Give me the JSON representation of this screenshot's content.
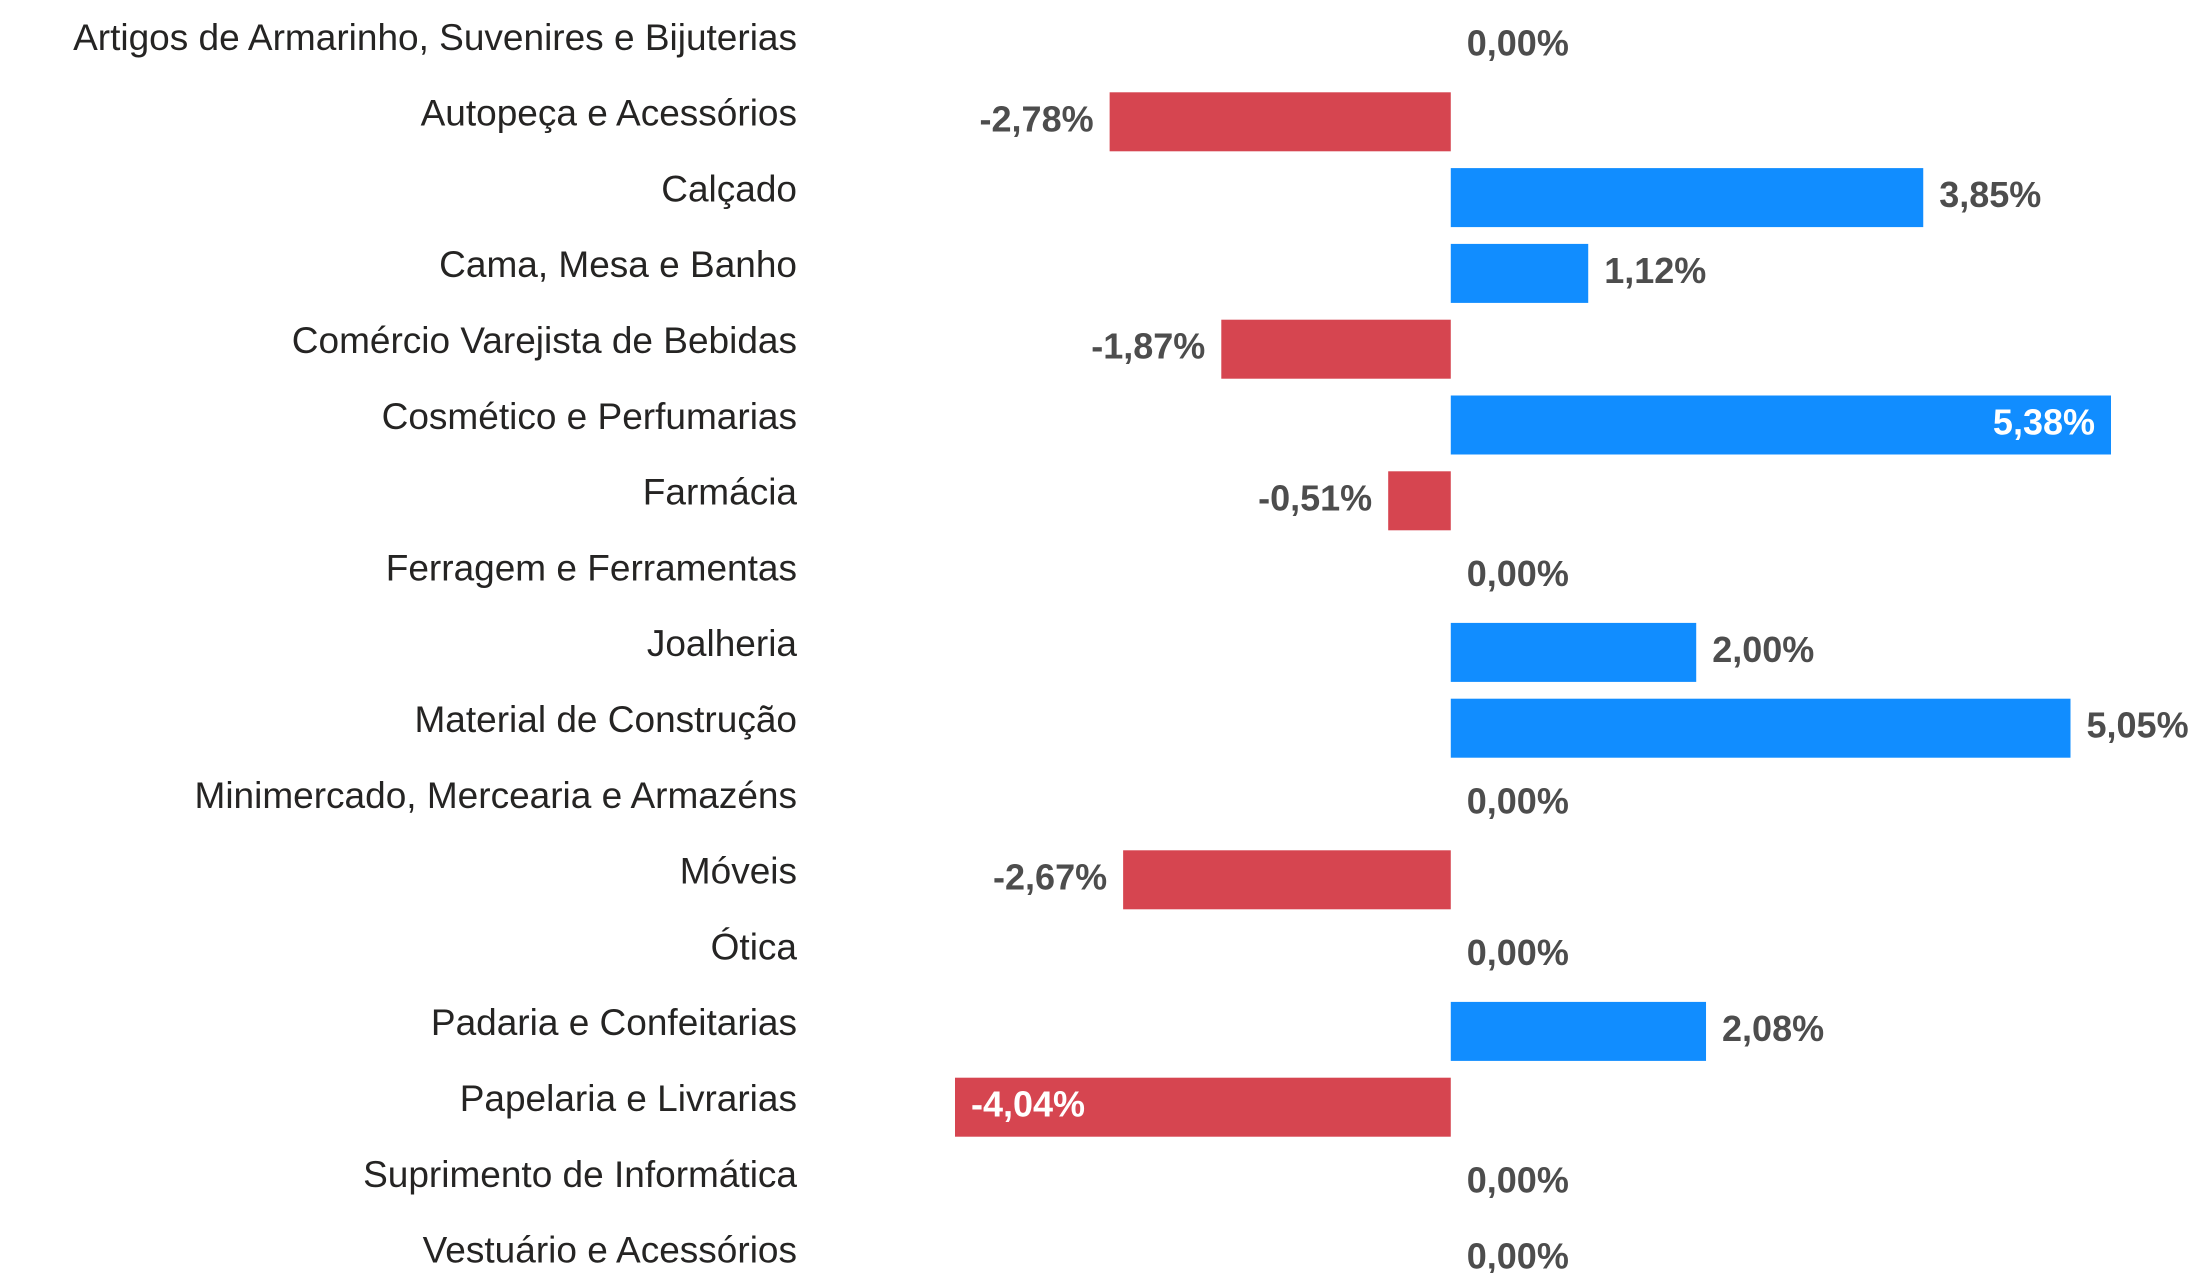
{
  "chart_data": {
    "type": "hbar",
    "categories": [
      "Artigos de Armarinho, Suvenires e Bijuterias",
      "Autopeça e Acessórios",
      "Calçado",
      "Cama, Mesa e Banho",
      "Comércio Varejista de Bebidas",
      "Cosmético e Perfumarias",
      "Farmácia",
      "Ferragem e Ferramentas",
      "Joalheria",
      "Material de Construção",
      "Minimercado, Mercearia e Armazéns",
      "Móveis",
      "Ótica",
      "Padaria e Confeitarias",
      "Papelaria e Livrarias",
      "Suprimento de Informática",
      "Vestuário e Acessórios"
    ],
    "values": [
      0,
      -2.78,
      3.85,
      1.12,
      -1.87,
      5.38,
      -0.51,
      0,
      2.0,
      5.05,
      0,
      -2.67,
      0,
      2.08,
      -4.04,
      0,
      0
    ],
    "value_labels": [
      "0,00%",
      "-2,78%",
      "3,85%",
      "1,12%",
      "-1,87%",
      "5,38%",
      "-0,51%",
      "0,00%",
      "2,00%",
      "5,05%",
      "0,00%",
      "-2,67%",
      "0,00%",
      "2,08%",
      "-4,04%",
      "0,00%",
      "0,00%"
    ],
    "positive_color": "#118DFF",
    "negative_color": "#D64550",
    "xlim": [
      -4.04,
      5.38
    ]
  }
}
